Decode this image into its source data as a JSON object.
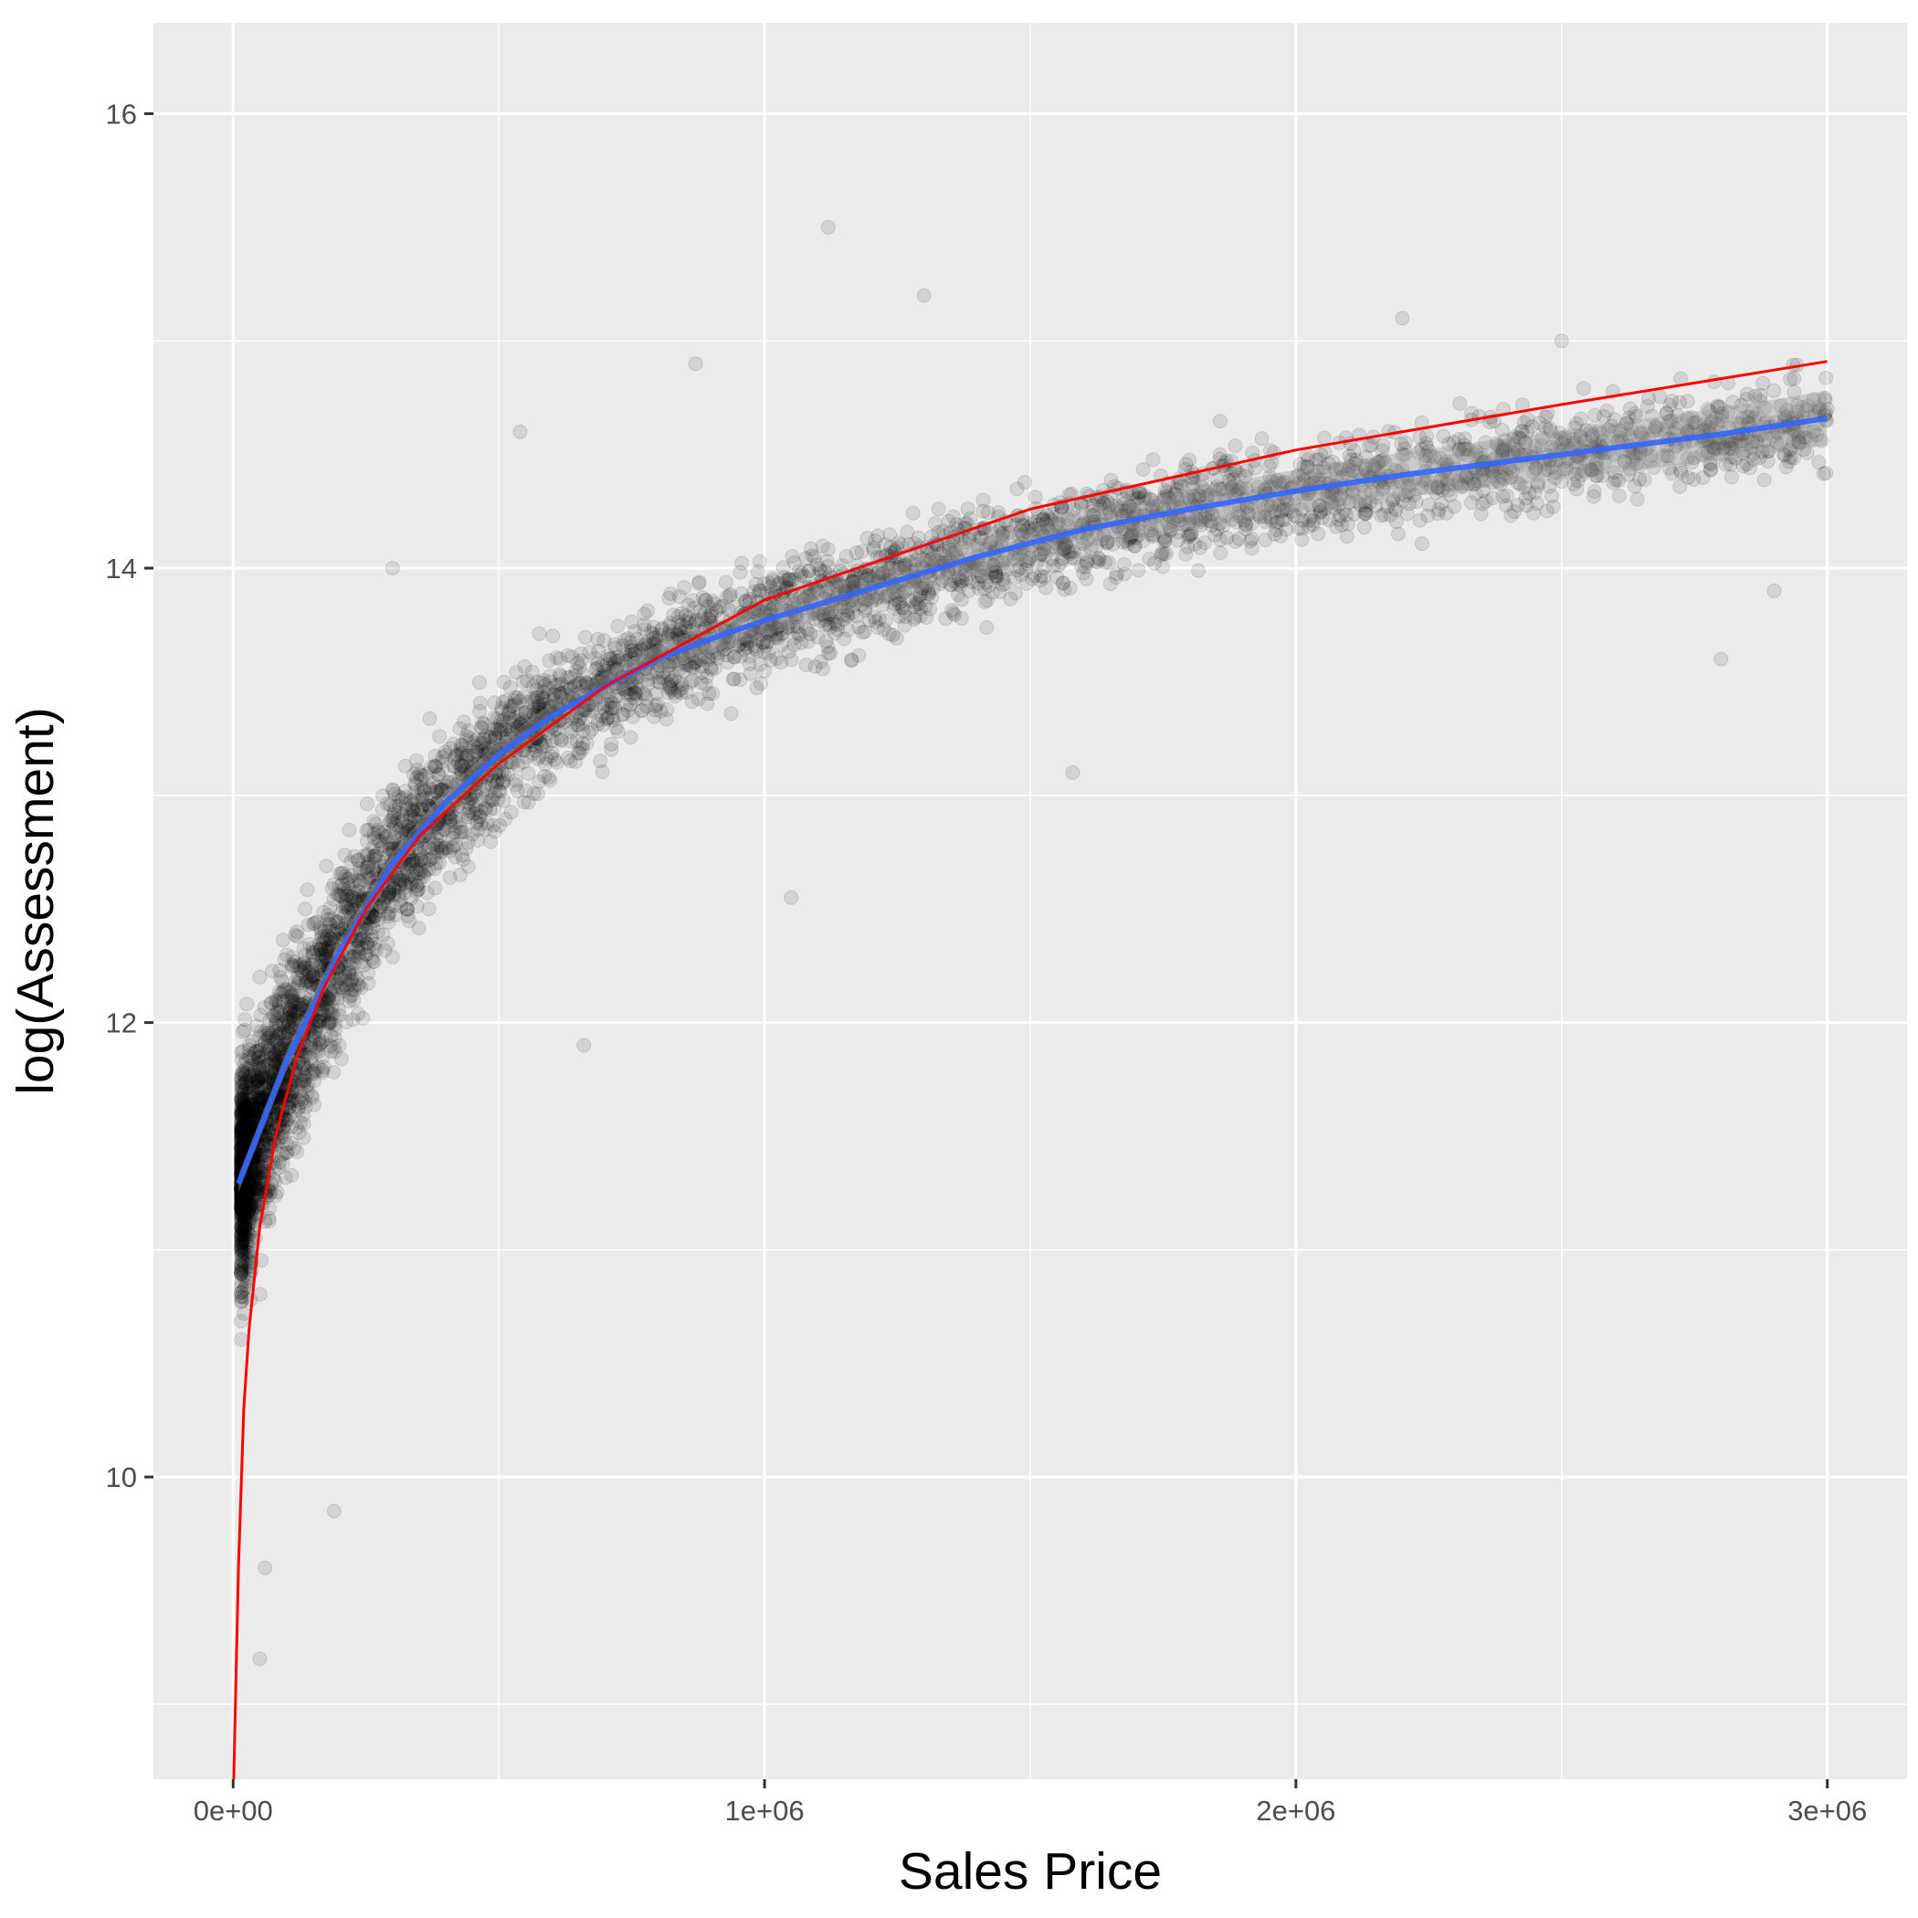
{
  "chart_data": {
    "type": "scatter",
    "title": "",
    "xlabel": "Sales Price",
    "ylabel": "log(Assessment)",
    "xlim": [
      -150000,
      3150000
    ],
    "ylim": [
      8.67,
      16.4
    ],
    "x_ticks": [
      {
        "value": 0,
        "label": "0e+00"
      },
      {
        "value": 1000000,
        "label": "1e+06"
      },
      {
        "value": 2000000,
        "label": "2e+06"
      },
      {
        "value": 3000000,
        "label": "3e+06"
      }
    ],
    "y_ticks": [
      {
        "value": 10,
        "label": "10"
      },
      {
        "value": 12,
        "label": "12"
      },
      {
        "value": 14,
        "label": "14"
      },
      {
        "value": 16,
        "label": "16"
      }
    ],
    "grid": true,
    "legend": "none",
    "background_color": "#ebebeb",
    "point_color": "#000000",
    "point_alpha": 0.1,
    "series": [
      {
        "kind": "points",
        "description_points": [
          [
            20000,
            11.6
          ],
          [
            30000,
            11.9
          ],
          [
            40000,
            11.2
          ],
          [
            50000,
            12.2
          ],
          [
            60000,
            11.5
          ],
          [
            80000,
            12.1
          ],
          [
            100000,
            11.8
          ],
          [
            120000,
            12.4
          ],
          [
            150000,
            12.2
          ],
          [
            180000,
            12.0
          ],
          [
            200000,
            12.6
          ],
          [
            250000,
            12.3
          ],
          [
            300000,
            12.7
          ],
          [
            350000,
            12.8
          ],
          [
            400000,
            12.9
          ],
          [
            500000,
            13.1
          ],
          [
            600000,
            13.3
          ],
          [
            700000,
            13.4
          ],
          [
            800000,
            13.6
          ],
          [
            900000,
            13.7
          ],
          [
            1000000,
            13.8
          ],
          [
            1100000,
            13.9
          ],
          [
            1200000,
            14.0
          ],
          [
            1300000,
            14.0
          ],
          [
            1400000,
            14.1
          ],
          [
            1500000,
            14.2
          ],
          [
            1600000,
            14.2
          ],
          [
            1700000,
            14.3
          ],
          [
            1800000,
            14.3
          ],
          [
            2000000,
            14.4
          ],
          [
            2200000,
            14.5
          ],
          [
            2400000,
            14.5
          ],
          [
            2600000,
            14.6
          ],
          [
            2800000,
            14.6
          ],
          [
            3000000,
            14.7
          ],
          [
            1120000,
            15.5
          ],
          [
            1300000,
            15.2
          ],
          [
            2200000,
            15.1
          ],
          [
            2500000,
            15.0
          ],
          [
            870000,
            14.9
          ],
          [
            540000,
            14.6
          ],
          [
            300000,
            14.0
          ],
          [
            50000,
            9.2
          ],
          [
            60000,
            9.6
          ],
          [
            190000,
            9.85
          ],
          [
            1050000,
            12.55
          ],
          [
            660000,
            11.9
          ],
          [
            2800000,
            13.6
          ],
          [
            2900000,
            13.9
          ],
          [
            1580000,
            13.1
          ]
        ]
      },
      {
        "kind": "smooth",
        "color": "#3366ff",
        "x": [
          10000,
          100000,
          200000,
          300000,
          400000,
          500000,
          600000,
          700000,
          800000,
          900000,
          1000000,
          1200000,
          1400000,
          1600000,
          1800000,
          2000000,
          2200000,
          2400000,
          2600000,
          2800000,
          3000000
        ],
        "y": [
          11.29,
          11.83,
          12.31,
          12.7,
          12.97,
          13.18,
          13.35,
          13.48,
          13.6,
          13.69,
          13.77,
          13.91,
          14.05,
          14.17,
          14.26,
          14.34,
          14.41,
          14.47,
          14.53,
          14.59,
          14.66
        ],
        "band": 0.04
      },
      {
        "kind": "line",
        "color": "#ff0000",
        "x": [
          1000,
          10000,
          20000,
          30000,
          50000,
          80000,
          120000,
          170000,
          250000,
          350000,
          500000,
          700000,
          1000000,
          1500000,
          2000000,
          2500000,
          3000000
        ],
        "y": [
          8.67,
          9.6,
          10.3,
          10.65,
          11.1,
          11.5,
          11.85,
          12.15,
          12.5,
          12.82,
          13.14,
          13.48,
          13.86,
          14.26,
          14.52,
          14.72,
          14.91
        ]
      }
    ]
  }
}
